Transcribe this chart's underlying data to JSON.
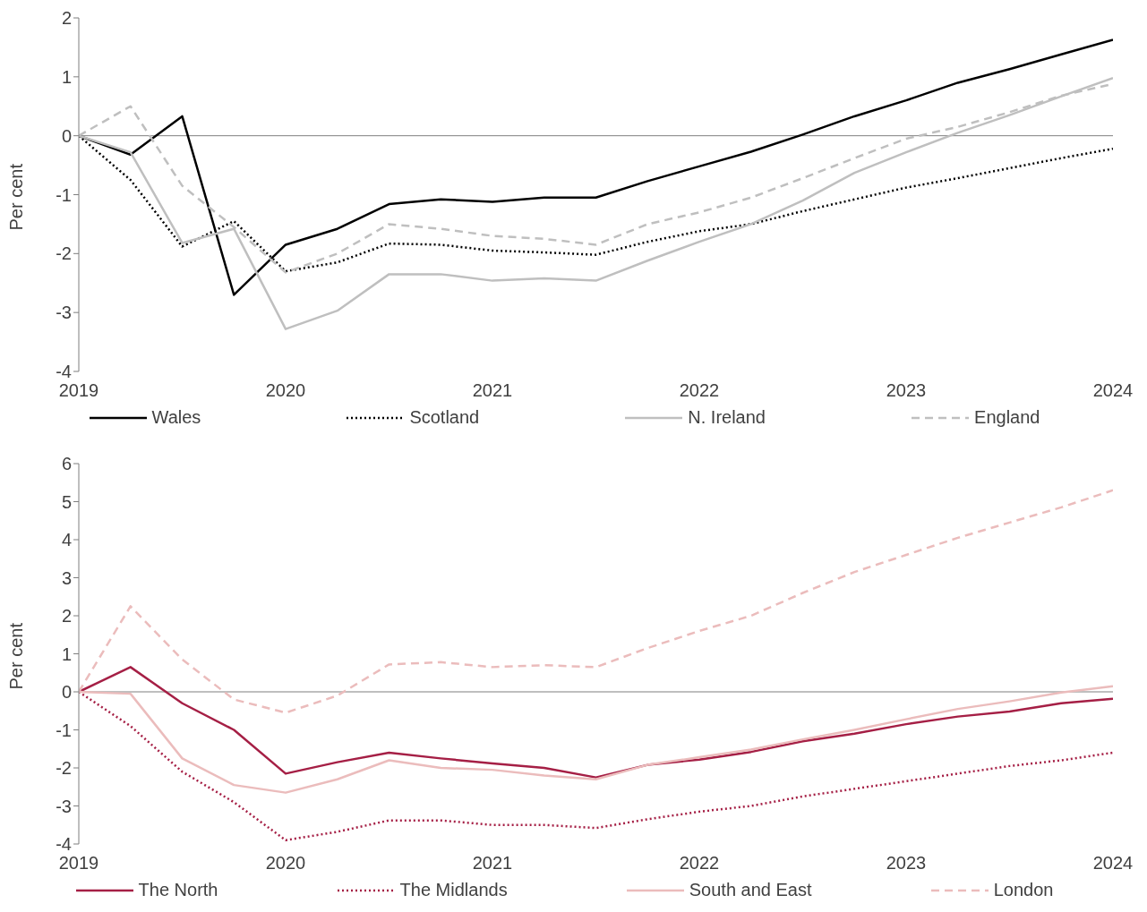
{
  "chart_data": [
    {
      "type": "line",
      "ylabel": "Per cent",
      "x": [
        2019,
        2019.25,
        2019.5,
        2019.75,
        2020,
        2020.25,
        2020.5,
        2020.75,
        2021,
        2021.25,
        2021.5,
        2021.75,
        2022,
        2022.25,
        2022.5,
        2022.75,
        2023,
        2023.25,
        2023.5,
        2023.75,
        2024
      ],
      "xlim": [
        2019,
        2024
      ],
      "xticks": [
        2019,
        2020,
        2021,
        2022,
        2023,
        2024
      ],
      "ylim": [
        -4,
        2
      ],
      "yticks": [
        -4,
        -3,
        -2,
        -1,
        0,
        1,
        2
      ],
      "grid": false,
      "ref_lines": [
        {
          "axis": "y",
          "value": 0,
          "color": "#7f7f7f"
        }
      ],
      "legend": "bottom",
      "series": [
        {
          "name": "Wales",
          "color": "#000000",
          "line_style": "solid",
          "values": [
            0,
            -0.32,
            0.33,
            -2.7,
            -1.85,
            -1.58,
            -1.16,
            -1.08,
            -1.12,
            -1.05,
            -1.05,
            -0.77,
            -0.52,
            -0.27,
            0.02,
            0.33,
            0.6,
            0.9,
            1.13,
            1.38,
            1.63
          ]
        },
        {
          "name": "Scotland",
          "color": "#000000",
          "line_style": "dotted",
          "values": [
            0,
            -0.75,
            -1.88,
            -1.45,
            -2.3,
            -2.15,
            -1.83,
            -1.85,
            -1.95,
            -1.98,
            -2.02,
            -1.8,
            -1.62,
            -1.5,
            -1.28,
            -1.08,
            -0.88,
            -0.72,
            -0.55,
            -0.38,
            -0.22
          ]
        },
        {
          "name": "N. Ireland",
          "color": "#bfbfbf",
          "line_style": "solid",
          "values": [
            0,
            -0.28,
            -1.82,
            -1.58,
            -3.28,
            -2.97,
            -2.35,
            -2.35,
            -2.46,
            -2.42,
            -2.46,
            -2.12,
            -1.8,
            -1.5,
            -1.1,
            -0.63,
            -0.28,
            0.05,
            0.35,
            0.67,
            0.98
          ]
        },
        {
          "name": "England",
          "color": "#bfbfbf",
          "line_style": "dashed",
          "values": [
            0,
            0.5,
            -0.85,
            -1.55,
            -2.32,
            -2.0,
            -1.5,
            -1.58,
            -1.7,
            -1.75,
            -1.85,
            -1.5,
            -1.3,
            -1.05,
            -0.72,
            -0.38,
            -0.05,
            0.15,
            0.4,
            0.68,
            0.88
          ]
        }
      ]
    },
    {
      "type": "line",
      "ylabel": "Per cent",
      "x": [
        2019,
        2019.25,
        2019.5,
        2019.75,
        2020,
        2020.25,
        2020.5,
        2020.75,
        2021,
        2021.25,
        2021.5,
        2021.75,
        2022,
        2022.25,
        2022.5,
        2022.75,
        2023,
        2023.25,
        2023.5,
        2023.75,
        2024
      ],
      "xlim": [
        2019,
        2024
      ],
      "xticks": [
        2019,
        2020,
        2021,
        2022,
        2023,
        2024
      ],
      "ylim": [
        -4,
        6
      ],
      "yticks": [
        -4,
        -3,
        -2,
        -1,
        0,
        1,
        2,
        3,
        4,
        5,
        6
      ],
      "grid": false,
      "ref_lines": [
        {
          "axis": "y",
          "value": 0,
          "color": "#7f7f7f"
        }
      ],
      "legend": "bottom",
      "series": [
        {
          "name": "The North",
          "color": "#a51f45",
          "line_style": "solid",
          "values": [
            0,
            0.65,
            -0.3,
            -1.0,
            -2.15,
            -1.85,
            -1.6,
            -1.75,
            -1.88,
            -2.0,
            -2.25,
            -1.92,
            -1.78,
            -1.58,
            -1.3,
            -1.1,
            -0.85,
            -0.65,
            -0.52,
            -0.3,
            -0.18
          ]
        },
        {
          "name": "The Midlands",
          "color": "#a51f45",
          "line_style": "dotted",
          "values": [
            0,
            -0.9,
            -2.1,
            -2.9,
            -3.9,
            -3.68,
            -3.38,
            -3.38,
            -3.5,
            -3.5,
            -3.58,
            -3.35,
            -3.15,
            -3.0,
            -2.75,
            -2.55,
            -2.35,
            -2.15,
            -1.95,
            -1.8,
            -1.6
          ]
        },
        {
          "name": "South and East",
          "color": "#ebbcbc",
          "line_style": "solid",
          "values": [
            0,
            -0.05,
            -1.75,
            -2.45,
            -2.65,
            -2.3,
            -1.8,
            -2.0,
            -2.05,
            -2.2,
            -2.3,
            -1.92,
            -1.72,
            -1.52,
            -1.25,
            -1.0,
            -0.72,
            -0.45,
            -0.25,
            -0.02,
            0.15
          ]
        },
        {
          "name": "London",
          "color": "#ebbcbc",
          "line_style": "dashed",
          "values": [
            0,
            2.25,
            0.85,
            -0.2,
            -0.55,
            -0.1,
            0.72,
            0.78,
            0.65,
            0.7,
            0.65,
            1.15,
            1.6,
            2.0,
            2.6,
            3.15,
            3.6,
            4.05,
            4.45,
            4.85,
            5.3
          ]
        }
      ]
    }
  ]
}
